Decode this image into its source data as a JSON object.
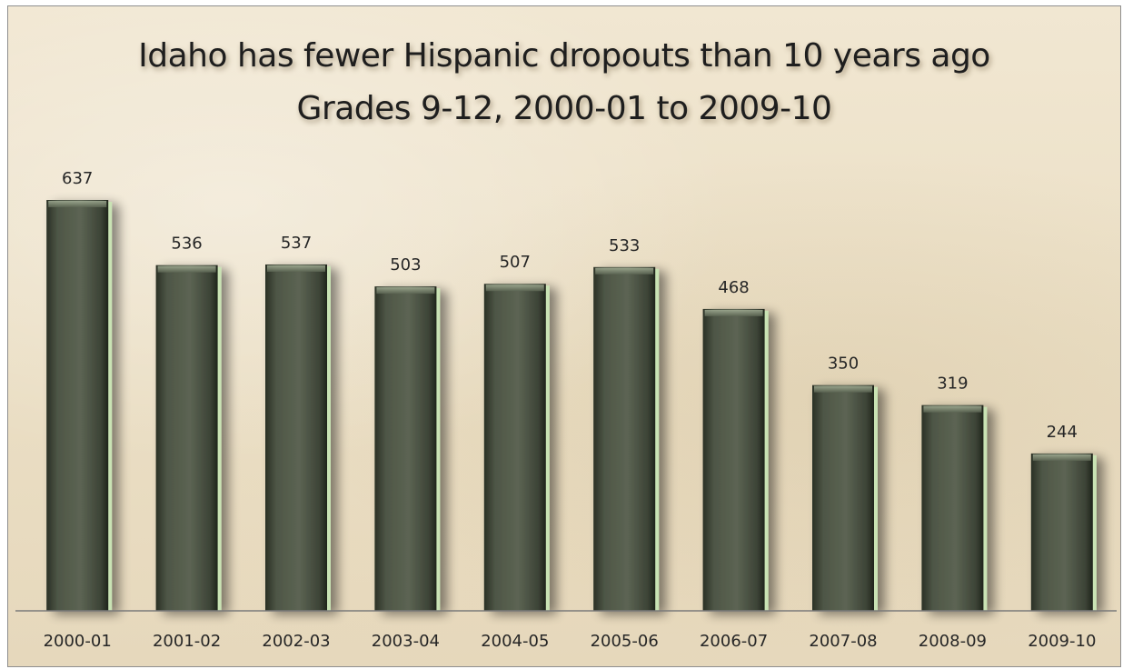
{
  "chart_data": {
    "type": "bar",
    "title": "Idaho has fewer Hispanic dropouts than 10 years ago",
    "subtitle": "Grades 9-12, 2000-01 to 2009-10",
    "categories": [
      "2000-01",
      "2001-02",
      "2002-03",
      "2003-04",
      "2004-05",
      "2005-06",
      "2006-07",
      "2007-08",
      "2008-09",
      "2009-10"
    ],
    "values": [
      637,
      536,
      537,
      503,
      507,
      533,
      468,
      350,
      319,
      244
    ],
    "data_labels": [
      "637",
      "536",
      "537",
      "503",
      "507",
      "533",
      "468",
      "350",
      "319",
      "244"
    ],
    "xlabel": "",
    "ylabel": "",
    "ylim": [
      0,
      700
    ],
    "grid": false,
    "legend": "none",
    "colors": {
      "bar_dark": "#262b22",
      "bar_mid": "#52594a",
      "bar_light": "#6d7563",
      "bar_edge": "#c9e3b4",
      "axis": "#7a7a7a",
      "background": "#efe4cc"
    }
  }
}
